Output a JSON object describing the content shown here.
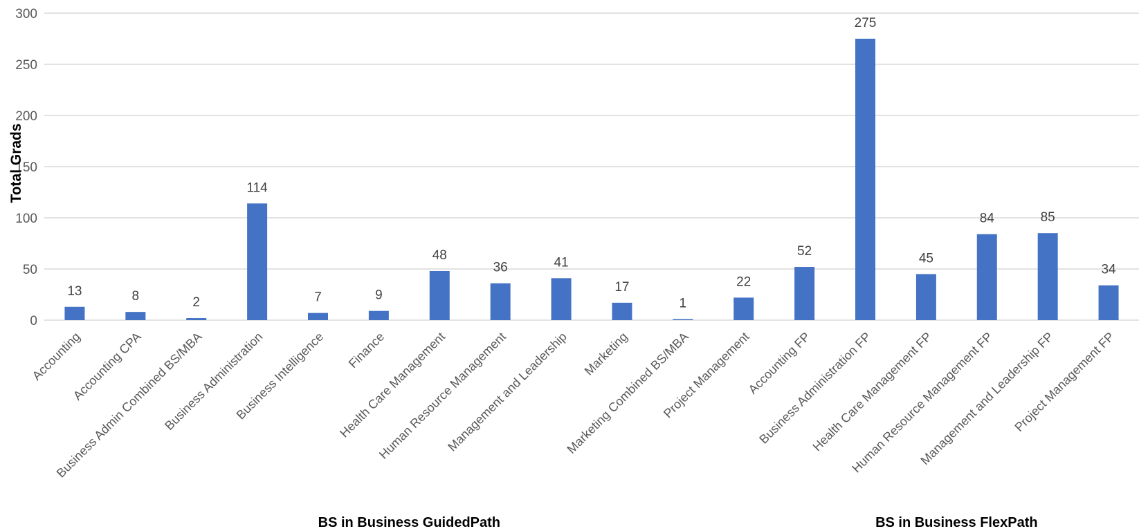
{
  "chart_data": {
    "type": "bar",
    "ylabel": "Total Grads",
    "ylim": [
      0,
      300
    ],
    "yticks": [
      "0",
      "50",
      "100",
      "150",
      "200",
      "250",
      "300"
    ],
    "grid": true,
    "bar_color": "#4472C4",
    "categories": [
      "Accounting",
      "Accounting CPA",
      "Business Admin Combined BS/MBA",
      "Business Administration",
      "Business Intelligence",
      "Finance",
      "Health Care Management",
      "Human Resource Management",
      "Management and Leadership",
      "Marketing",
      "Marketing Combined BS/MBA",
      "Project Management",
      "Accounting FP",
      "Business Administration FP",
      "Health Care Management FP",
      "Human Resource Management FP",
      "Management and Leadership FP",
      "Project Management FP"
    ],
    "values": [
      13,
      8,
      2,
      114,
      7,
      9,
      48,
      36,
      41,
      17,
      1,
      22,
      52,
      275,
      45,
      84,
      85,
      34
    ],
    "groups": [
      {
        "label": "BS in Business GuidedPath",
        "start": 0,
        "end": 11
      },
      {
        "label": "BS in Business FlexPath",
        "start": 12,
        "end": 17
      }
    ]
  }
}
